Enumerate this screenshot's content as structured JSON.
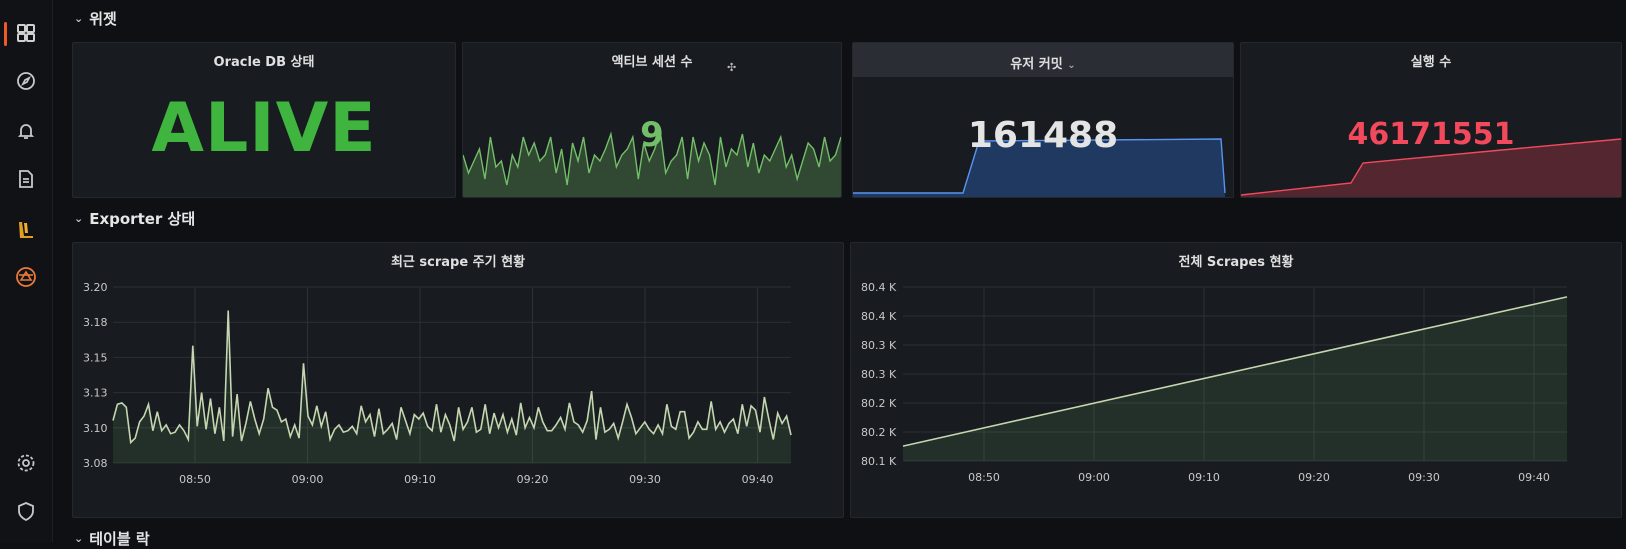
{
  "sidebar": {
    "items": [
      {
        "name": "dashboards-icon"
      },
      {
        "name": "explore-icon"
      },
      {
        "name": "alerting-icon"
      },
      {
        "name": "reports-icon"
      },
      {
        "name": "plugin-icon"
      },
      {
        "name": "app-icon"
      },
      {
        "name": "settings-icon"
      },
      {
        "name": "shield-icon"
      }
    ]
  },
  "rows": {
    "widgets": "위젯",
    "exporter": "Exporter 상태",
    "tables": "테이블 락"
  },
  "stats": {
    "oracle": {
      "title": "Oracle DB 상태",
      "value": "ALIVE",
      "color": "#3fb43f"
    },
    "sessions": {
      "title": "액티브 세션 수",
      "value": "9",
      "color": "#73bf69"
    },
    "commits": {
      "title": "유저 커밋",
      "value": "161488",
      "color": "#e4e4e4"
    },
    "executions": {
      "title": "실행 수",
      "value": "46171551",
      "color": "#f2495c"
    }
  },
  "colors": {
    "green": "#73bf69",
    "blue": "#3274d9",
    "red": "#f2495c",
    "line": "#c5d6b0"
  },
  "chart_data": [
    {
      "type": "line",
      "title": "최근 scrape 주기 현황",
      "x_ticks": [
        "08:50",
        "09:00",
        "09:10",
        "09:20",
        "09:30",
        "09:40"
      ],
      "y_ticks": [
        "3.20",
        "3.18",
        "3.15",
        "3.13",
        "3.10",
        "3.08"
      ],
      "ylim": [
        3.08,
        3.2
      ],
      "series": [
        {
          "values": [
            3.109,
            3.12,
            3.121,
            3.118,
            3.094,
            3.097,
            3.108,
            3.112,
            3.12,
            3.102,
            3.115,
            3.102,
            3.106,
            3.1,
            3.101,
            3.106,
            3.102,
            3.096,
            3.16,
            3.105,
            3.128,
            3.103,
            3.124,
            3.1,
            3.118,
            3.095,
            3.184,
            3.098,
            3.127,
            3.095,
            3.107,
            3.122,
            3.11,
            3.1,
            3.11,
            3.131,
            3.118,
            3.116,
            3.108,
            3.11,
            3.098,
            3.106,
            3.097,
            3.148,
            3.112,
            3.106,
            3.119,
            3.105,
            3.115,
            3.096,
            3.103,
            3.106,
            3.101,
            3.102,
            3.105,
            3.1,
            3.119,
            3.108,
            3.113,
            3.098,
            3.117,
            3.1,
            3.103,
            3.107,
            3.096,
            3.118,
            3.109,
            3.1,
            3.113,
            3.11,
            3.114,
            3.105,
            3.102,
            3.12,
            3.101,
            3.113,
            3.106,
            3.095,
            3.118,
            3.103,
            3.108,
            3.118,
            3.101,
            3.103,
            3.12,
            3.1,
            3.114,
            3.104,
            3.113,
            3.101,
            3.11,
            3.099,
            3.121,
            3.104,
            3.111,
            3.104,
            3.118,
            3.108,
            3.102,
            3.102,
            3.106,
            3.111,
            3.103,
            3.121,
            3.108,
            3.106,
            3.101,
            3.109,
            3.129,
            3.096,
            3.118,
            3.101,
            3.103,
            3.107,
            3.097,
            3.108,
            3.12,
            3.111,
            3.1,
            3.104,
            3.108,
            3.103,
            3.1,
            3.106,
            3.1,
            3.12,
            3.105,
            3.103,
            3.115,
            3.115,
            3.097,
            3.101,
            3.108,
            3.103,
            3.103,
            3.122,
            3.103,
            3.108,
            3.101,
            3.107,
            3.11,
            3.1,
            3.12,
            3.105,
            3.119,
            3.116,
            3.101,
            3.125,
            3.11,
            3.096,
            3.114,
            3.107,
            3.112,
            3.099
          ]
        }
      ]
    },
    {
      "type": "area",
      "title": "전체 Scrapes 현황",
      "x_ticks": [
        "08:50",
        "09:00",
        "09:10",
        "09:20",
        "09:30",
        "09:40"
      ],
      "y_ticks": [
        "80.4 K",
        "80.4 K",
        "80.3 K",
        "80.3 K",
        "80.2 K",
        "80.2 K",
        "80.1 K"
      ],
      "ylim": [
        80.1,
        80.45
      ],
      "series": [
        {
          "values": [
            80.13,
            80.43
          ]
        }
      ]
    }
  ]
}
